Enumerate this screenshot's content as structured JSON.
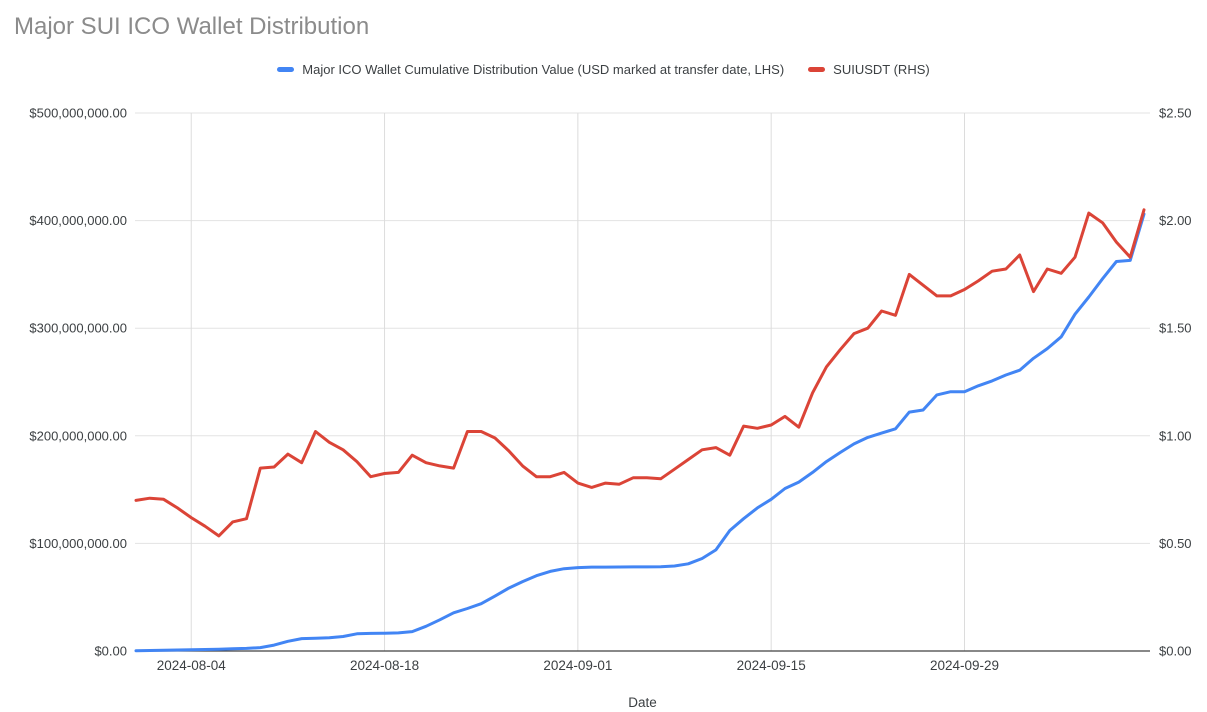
{
  "title": "Major SUI ICO Wallet Distribution",
  "legend": {
    "items": [
      {
        "label": "Major ICO Wallet Cumulative Distribution Value (USD marked at transfer date, LHS)",
        "color": "#4285f4"
      },
      {
        "label": "SUIUSDT (RHS)",
        "color": "#db4437"
      }
    ]
  },
  "colors": {
    "background": "#ffffff",
    "title_text": "#8b8b8b",
    "tick_text": "#3c4043",
    "horizontal_gridline": "#e3e3e3",
    "vertical_gridline": "#dcdcdc",
    "axis_line": "#424242",
    "series_blue": "#4285f4",
    "series_red": "#db4437"
  },
  "chart_data": {
    "type": "line",
    "title": "Major SUI ICO Wallet Distribution",
    "x_label": "Date",
    "grid": true,
    "legend_position": "top",
    "x_ticks": [
      "2024-08-04",
      "2024-08-18",
      "2024-09-01",
      "2024-09-15",
      "2024-09-29"
    ],
    "left_axis": {
      "range": [
        0,
        500000000
      ],
      "ticks": [
        {
          "value": 0,
          "label": "$0.00"
        },
        {
          "value": 100000000,
          "label": "$100,000,000.00"
        },
        {
          "value": 200000000,
          "label": "$200,000,000.00"
        },
        {
          "value": 300000000,
          "label": "$300,000,000.00"
        },
        {
          "value": 400000000,
          "label": "$400,000,000.00"
        },
        {
          "value": 500000000,
          "label": "$500,000,000.00"
        }
      ]
    },
    "right_axis": {
      "range": [
        0,
        2.5
      ],
      "ticks": [
        {
          "value": 0,
          "label": "$0.00"
        },
        {
          "value": 0.5,
          "label": "$0.50"
        },
        {
          "value": 1,
          "label": "$1.00"
        },
        {
          "value": 1.5,
          "label": "$1.50"
        },
        {
          "value": 2,
          "label": "$2.00"
        },
        {
          "value": 2.5,
          "label": "$2.50"
        }
      ]
    },
    "x": [
      "2024-07-31",
      "2024-08-01",
      "2024-08-02",
      "2024-08-03",
      "2024-08-04",
      "2024-08-05",
      "2024-08-06",
      "2024-08-07",
      "2024-08-08",
      "2024-08-09",
      "2024-08-10",
      "2024-08-11",
      "2024-08-12",
      "2024-08-13",
      "2024-08-14",
      "2024-08-15",
      "2024-08-16",
      "2024-08-17",
      "2024-08-18",
      "2024-08-19",
      "2024-08-20",
      "2024-08-21",
      "2024-08-22",
      "2024-08-23",
      "2024-08-24",
      "2024-08-25",
      "2024-08-26",
      "2024-08-27",
      "2024-08-28",
      "2024-08-29",
      "2024-08-30",
      "2024-08-31",
      "2024-09-01",
      "2024-09-02",
      "2024-09-03",
      "2024-09-04",
      "2024-09-05",
      "2024-09-06",
      "2024-09-07",
      "2024-09-08",
      "2024-09-09",
      "2024-09-10",
      "2024-09-11",
      "2024-09-12",
      "2024-09-13",
      "2024-09-14",
      "2024-09-15",
      "2024-09-16",
      "2024-09-17",
      "2024-09-18",
      "2024-09-19",
      "2024-09-20",
      "2024-09-21",
      "2024-09-22",
      "2024-09-23",
      "2024-09-24",
      "2024-09-25",
      "2024-09-26",
      "2024-09-27",
      "2024-09-28",
      "2024-09-29",
      "2024-09-30",
      "2024-10-01",
      "2024-10-02",
      "2024-10-03",
      "2024-10-04",
      "2024-10-05",
      "2024-10-06",
      "2024-10-07",
      "2024-10-08",
      "2024-10-09",
      "2024-10-10",
      "2024-10-11",
      "2024-10-12"
    ],
    "series": [
      {
        "name": "Major ICO Wallet Cumulative Distribution Value (USD marked at transfer date, LHS)",
        "axis": "left",
        "color": "#4285f4",
        "values": [
          300000,
          500000,
          700000,
          900000,
          1100000,
          1400000,
          1700000,
          2000000,
          2400000,
          3200000,
          5500000,
          9000000,
          11500000,
          11800000,
          12300000,
          13500000,
          16000000,
          16400000,
          16500000,
          16800000,
          18000000,
          23000000,
          29000000,
          35500000,
          39500000,
          44000000,
          51000000,
          58500000,
          64500000,
          70000000,
          74000000,
          76500000,
          77500000,
          78000000,
          78000000,
          78100000,
          78200000,
          78200000,
          78300000,
          79000000,
          81000000,
          86000000,
          94000000,
          112000000,
          123000000,
          133000000,
          141000000,
          151000000,
          157000000,
          166000000,
          176000000,
          184500000,
          192500000,
          198500000,
          202500000,
          206500000,
          222000000,
          224000000,
          238000000,
          241000000,
          241000000,
          246500000,
          251000000,
          256500000,
          261000000,
          272000000,
          281000000,
          292000000,
          313000000,
          329000000,
          346000000,
          362000000,
          363000000,
          406000000
        ]
      },
      {
        "name": "SUIUSDT (RHS)",
        "axis": "right",
        "color": "#db4437",
        "values": [
          0.7,
          0.71,
          0.705,
          0.665,
          0.62,
          0.58,
          0.535,
          0.6,
          0.615,
          0.85,
          0.855,
          0.915,
          0.875,
          1.02,
          0.97,
          0.935,
          0.88,
          0.81,
          0.825,
          0.83,
          0.91,
          0.875,
          0.86,
          0.85,
          1.02,
          1.02,
          0.99,
          0.93,
          0.86,
          0.81,
          0.81,
          0.83,
          0.78,
          0.76,
          0.78,
          0.775,
          0.805,
          0.805,
          0.8,
          0.845,
          0.89,
          0.935,
          0.945,
          0.91,
          1.045,
          1.035,
          1.05,
          1.09,
          1.04,
          1.2,
          1.32,
          1.4,
          1.475,
          1.5,
          1.58,
          1.56,
          1.75,
          1.7,
          1.65,
          1.65,
          1.68,
          1.72,
          1.765,
          1.775,
          1.84,
          1.67,
          1.775,
          1.755,
          1.83,
          2.035,
          1.99,
          1.9,
          1.83,
          2.05
        ]
      }
    ]
  }
}
